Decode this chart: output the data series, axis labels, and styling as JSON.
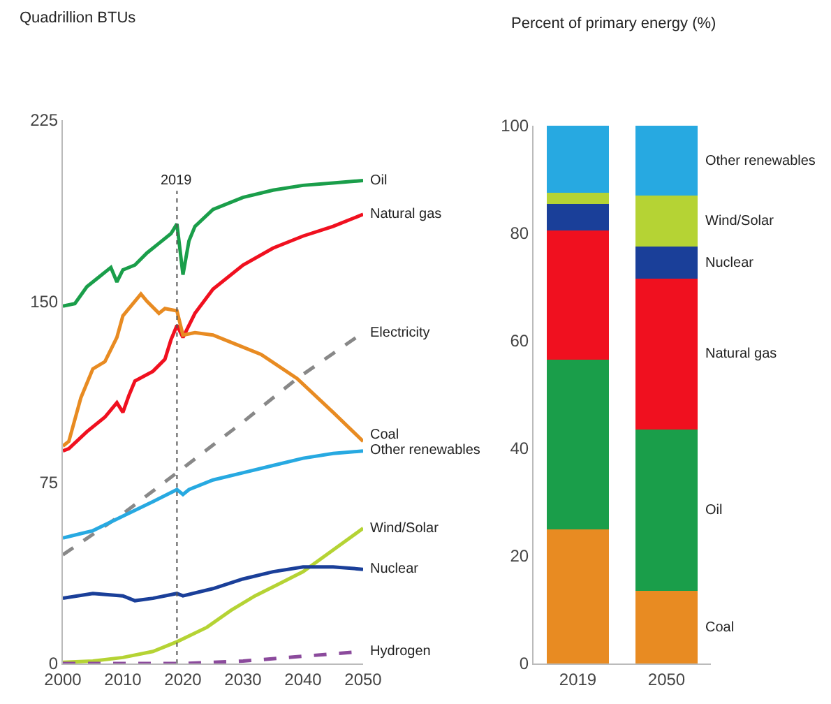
{
  "chart_data": [
    {
      "type": "line",
      "ylabel": "Quadrillion BTUs",
      "xlim": [
        2000,
        2050
      ],
      "xticks": [
        2000,
        2010,
        2020,
        2030,
        2040,
        2050
      ],
      "ylim": [
        0,
        225
      ],
      "yticks": [
        0,
        75,
        150,
        225
      ],
      "grid": false,
      "legend": false,
      "marker": "none",
      "ref_lines": [
        {
          "axis": "x",
          "value": 2019,
          "label": "2019",
          "line_style": "dotted",
          "color": "#555555"
        }
      ],
      "series": [
        {
          "name": "Oil",
          "color": "#1a9e4a",
          "x": [
            2000,
            2002,
            2004,
            2006,
            2008,
            2009,
            2010,
            2012,
            2014,
            2016,
            2018,
            2019,
            2020,
            2021,
            2022,
            2025,
            2030,
            2035,
            2040,
            2045,
            2050
          ],
          "values": [
            148,
            149,
            156,
            160,
            164,
            158,
            163,
            165,
            170,
            174,
            178,
            182,
            161,
            175,
            181,
            188,
            193,
            196,
            198,
            199,
            200
          ]
        },
        {
          "name": "Natural gas",
          "color": "#f0101f",
          "x": [
            2000,
            2001,
            2004,
            2007,
            2009,
            2010,
            2011,
            2012,
            2015,
            2017,
            2018,
            2019,
            2020,
            2022,
            2025,
            2030,
            2035,
            2040,
            2045,
            2050
          ],
          "values": [
            88,
            89,
            96,
            102,
            108,
            104,
            111,
            117,
            121,
            126,
            134,
            140,
            135,
            145,
            155,
            165,
            172,
            177,
            181,
            186
          ]
        },
        {
          "name": "Electricity",
          "color": "#888888",
          "line_style": "dashed",
          "x": [
            2000,
            2010,
            2019,
            2030,
            2039,
            2050
          ],
          "values": [
            45,
            62,
            79,
            100,
            118,
            137
          ]
        },
        {
          "name": "Coal",
          "color": "#e88b22",
          "x": [
            2000,
            2001,
            2003,
            2005,
            2007,
            2009,
            2010,
            2012,
            2013,
            2014,
            2016,
            2017,
            2019,
            2020,
            2022,
            2025,
            2028,
            2033,
            2039,
            2045,
            2050
          ],
          "values": [
            90,
            92,
            110,
            122,
            125,
            135,
            144,
            150,
            153,
            150,
            145,
            147,
            146,
            136,
            137,
            136,
            133,
            128,
            118,
            104,
            92
          ]
        },
        {
          "name": "Other renewables",
          "color": "#27a9e1",
          "x": [
            2000,
            2005,
            2010,
            2015,
            2019,
            2020,
            2021,
            2025,
            2030,
            2035,
            2040,
            2045,
            2050
          ],
          "values": [
            52,
            55,
            61,
            67,
            72,
            70,
            72,
            76,
            79,
            82,
            85,
            87,
            88
          ]
        },
        {
          "name": "Wind/Solar",
          "color": "#b5d334",
          "x": [
            2000,
            2005,
            2010,
            2015,
            2019,
            2024,
            2028,
            2032,
            2036,
            2040,
            2045,
            2050
          ],
          "values": [
            0.5,
            1,
            2.5,
            5,
            9,
            15,
            22,
            28,
            33,
            38,
            47,
            56
          ]
        },
        {
          "name": "Nuclear",
          "color": "#1a3f99",
          "x": [
            2000,
            2005,
            2010,
            2012,
            2015,
            2019,
            2020,
            2025,
            2030,
            2035,
            2040,
            2045,
            2050
          ],
          "values": [
            27,
            29,
            28,
            26,
            27,
            29,
            28,
            31,
            35,
            38,
            40,
            40,
            39
          ]
        },
        {
          "name": "Hydrogen",
          "color": "#8b4a9c",
          "line_style": "dashed",
          "x": [
            2000,
            2020,
            2030,
            2040,
            2050
          ],
          "values": [
            0,
            0,
            1,
            3,
            5
          ]
        }
      ]
    },
    {
      "type": "bar",
      "stacked": true,
      "ylabel": "Percent of primary energy (%)",
      "categories": [
        "2019",
        "2050"
      ],
      "ylim": [
        0,
        100
      ],
      "yticks": [
        0,
        20,
        40,
        60,
        80,
        100
      ],
      "grid": false,
      "legend": false,
      "series": [
        {
          "name": "Coal",
          "color": "#e88b22",
          "values": [
            25,
            13.5
          ]
        },
        {
          "name": "Oil",
          "color": "#1a9e4a",
          "values": [
            31.5,
            30
          ]
        },
        {
          "name": "Natural gas",
          "color": "#f0101f",
          "values": [
            24,
            28
          ]
        },
        {
          "name": "Nuclear",
          "color": "#1a3f99",
          "values": [
            5,
            6
          ]
        },
        {
          "name": "Wind/Solar",
          "color": "#b5d334",
          "values": [
            2,
            9.5
          ]
        },
        {
          "name": "Other renewables",
          "color": "#27a9e1",
          "values": [
            12.5,
            13
          ]
        }
      ]
    }
  ]
}
